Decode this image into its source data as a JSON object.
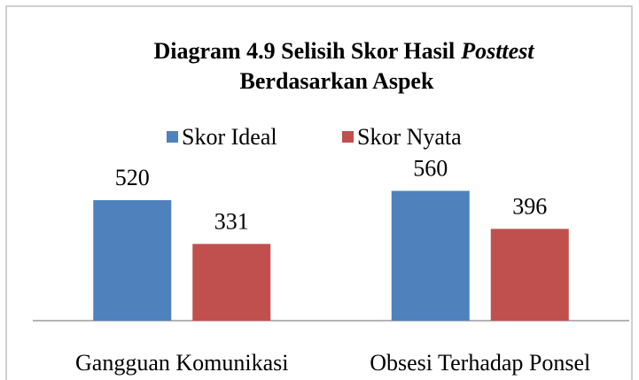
{
  "chart_data": {
    "type": "bar",
    "title": [
      "Diagram 4.9 Selisih Skor Hasil",
      "Posttest",
      "Berdasarkan Aspek"
    ],
    "categories": [
      "Gangguan Komunikasi",
      "Obsesi Terhadap Ponsel"
    ],
    "series": [
      {
        "name": "Skor Ideal",
        "color": "#4f81bd",
        "values": [
          520,
          560
        ]
      },
      {
        "name": "Skor Nyata",
        "color": "#c0504d",
        "values": [
          331,
          396
        ]
      }
    ],
    "ylim": [
      0,
      600
    ],
    "legend": "top"
  }
}
